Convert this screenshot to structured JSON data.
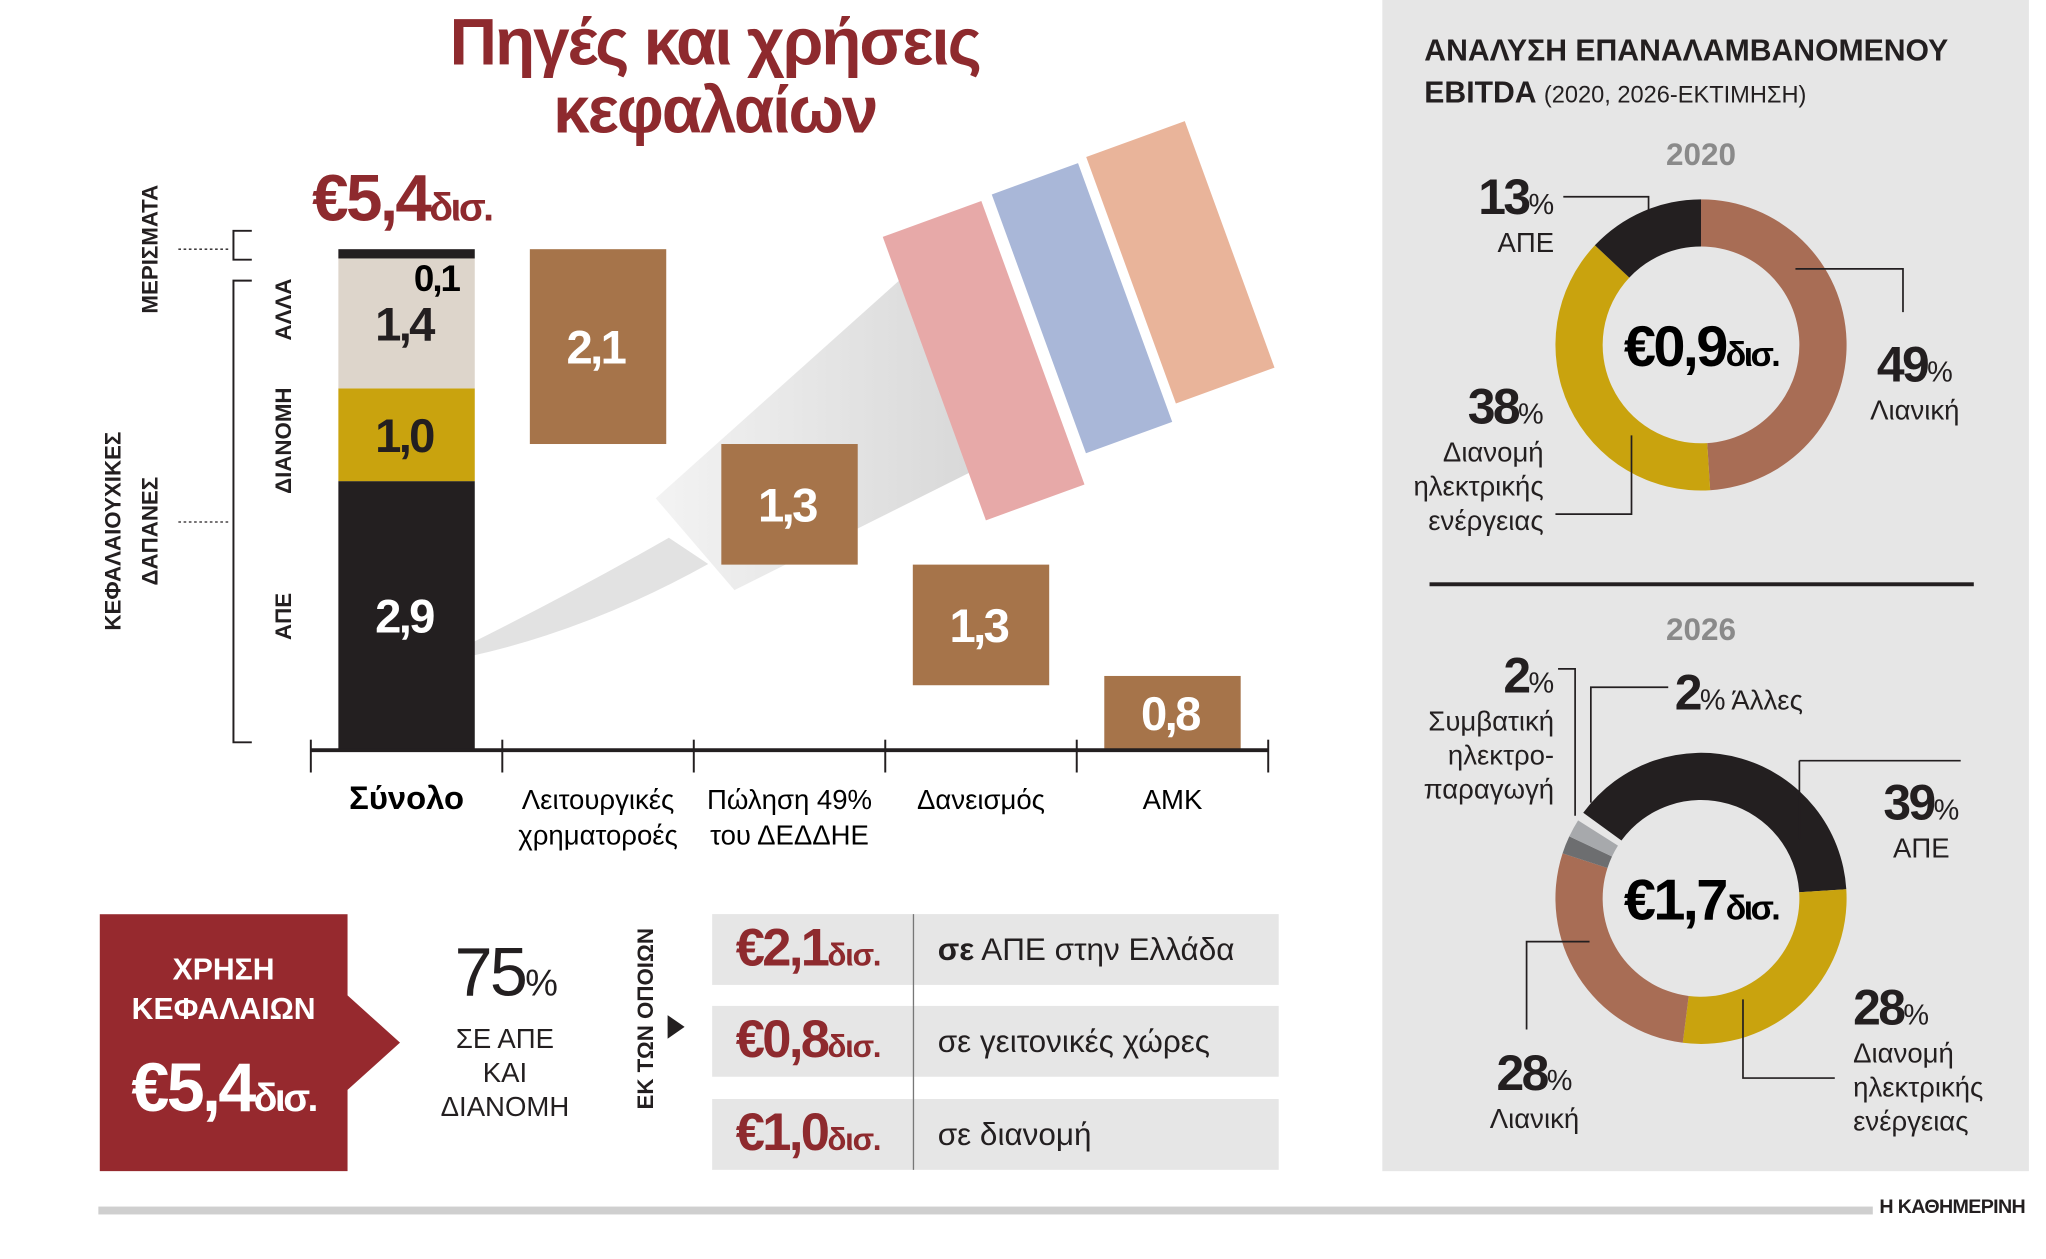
{
  "title_line1": "Πηγές και χρήσεις",
  "title_line2": "κεφαλαίων",
  "total_label": "€5,4",
  "unit": "δισ.",
  "left_labels": {
    "dividends": "ΜΕΡΙΣΜΑΤΑ",
    "capex_line1": "ΚΕΦΑΛΑΙΟΥΧΙΚΕΣ",
    "capex_line2": "ΔΑΠΑΝΕΣ",
    "other": "ΑΛΛΑ",
    "distribution": "ΔΙΑΝΟΜΗ",
    "res": "ΑΠΕ"
  },
  "colors": {
    "title_red": "#8e2a2e",
    "source_brown": "#a6744a",
    "res_black": "#231f20",
    "distribution_gold": "#c9a30e",
    "other_beige": "#ddd5cb",
    "retail_brown": "#a86d55",
    "conventional_gray": "#6d6e70",
    "others_gray": "#a7a9ac",
    "panel_gray": "#e6e6e6"
  },
  "chart_data": [
    {
      "type": "bar",
      "subtype": "waterfall",
      "title": "Πηγές και χρήσεις κεφαλαίων",
      "total": {
        "category": "Σύνολο",
        "value": 5.4,
        "label": "€5,4 δισ.",
        "stack": [
          {
            "name": "ΑΠΕ",
            "value": 2.9,
            "label": "2,9",
            "color": "#231f20"
          },
          {
            "name": "ΔΙΑΝΟΜΗ",
            "value": 1.0,
            "label": "1,0",
            "color": "#c9a30e"
          },
          {
            "name": "ΑΛΛΑ",
            "value": 1.4,
            "label": "1,4",
            "color": "#ddd5cb"
          },
          {
            "name": "ΜΕΡΙΣΜΑΤΑ",
            "value": 0.1,
            "label": "0,1",
            "color": "#231f20"
          }
        ]
      },
      "categories": [
        "Σύνολο",
        "Λειτουργικές χρηματοροές",
        "Πώληση 49% του ΔΕΔΔΗΕ",
        "Δανεισμός",
        "ΑΜΚ"
      ],
      "category_lines": [
        [
          "Σύνολο"
        ],
        [
          "Λειτουργικές",
          "χρηματοροές"
        ],
        [
          "Πώληση 49%",
          "του ΔΕΔΔΗΕ"
        ],
        [
          "Δανεισμός"
        ],
        [
          "ΑΜΚ"
        ]
      ],
      "sources": [
        {
          "category": "Λειτουργικές χρηματοροές",
          "value": 2.1,
          "label": "2,1"
        },
        {
          "category": "Πώληση 49% του ΔΕΔΔΗΕ",
          "value": 1.3,
          "label": "1,3"
        },
        {
          "category": "Δανεισμός",
          "value": 1.3,
          "label": "1,3"
        },
        {
          "category": "ΑΜΚ",
          "value": 0.8,
          "label": "0,8"
        }
      ],
      "ylim": [
        0,
        5.4
      ],
      "grid": false
    },
    {
      "type": "pie",
      "subtype": "donut",
      "title": "2020",
      "center_label": "€0,9",
      "center_unit": "δισ.",
      "slices": [
        {
          "name": "Λιανική",
          "value": 49,
          "label": "49%",
          "color": "#a86d55"
        },
        {
          "name": "Διανομή ηλεκτρικής ενέργειας",
          "value": 38,
          "label": "38%",
          "color": "#c9a30e"
        },
        {
          "name": "ΑΠΕ",
          "value": 13,
          "label": "13%",
          "color": "#231f20"
        }
      ]
    },
    {
      "type": "pie",
      "subtype": "donut",
      "title": "2026",
      "center_label": "€1,7",
      "center_unit": "δισ.",
      "slices": [
        {
          "name": "ΑΠΕ",
          "value": 39,
          "label": "39%",
          "color": "#231f20"
        },
        {
          "name": "Διανομή ηλεκτρικής ενέργειας",
          "value": 28,
          "label": "28%",
          "color": "#c9a30e"
        },
        {
          "name": "Λιανική",
          "value": 28,
          "label": "28%",
          "color": "#a86d55"
        },
        {
          "name": "Συμβατική ηλεκτροπαραγωγή",
          "value": 2,
          "label": "2%",
          "color": "#6d6e70"
        },
        {
          "name": "Άλλες",
          "value": 2,
          "label": "2%",
          "color": "#a7a9ac"
        }
      ]
    }
  ],
  "uses": {
    "box_line1": "ΧΡΗΣΗ",
    "box_line2": "ΚΕΦΑΛΑΙΩΝ",
    "box_amount": "€5,4",
    "box_unit": "δισ.",
    "share_value": "75",
    "share_pct": "%",
    "share_line1": "ΣΕ ΑΠΕ",
    "share_line2": "ΚΑΙ",
    "share_line3": "ΔΙΑΝΟΜΗ",
    "of_which": "ΕΚ ΤΩΝ ΟΠΟΙΩΝ",
    "rows": [
      {
        "amount": "€2,1",
        "unit": "δισ.",
        "bold": "σε",
        "text": "ΑΠΕ στην Ελλάδα"
      },
      {
        "amount": "€0,8",
        "unit": "δισ.",
        "bold": "",
        "text": "σε γειτονικές χώρες"
      },
      {
        "amount": "€1,0",
        "unit": "δισ.",
        "bold": "",
        "text": "σε διανομή"
      }
    ]
  },
  "ebitda": {
    "title_line1": "ΑΝΑΛΥΣΗ ΕΠΑΝΑΛΑΜΒΑΝΟΜΕΝΟΥ",
    "title_bold": "EBITDA",
    "title_rest": "(2020, 2026-ΕΚΤΙΜΗΣΗ)",
    "y2020": {
      "year": "2020",
      "ape_pct": "13",
      "ape": "ΑΠΕ",
      "retail_pct": "49",
      "retail": "Λιανική",
      "dist_pct": "38",
      "dist1": "Διανομή",
      "dist2": "ηλεκτρικής",
      "dist3": "ενέργειας"
    },
    "y2026": {
      "year": "2026",
      "conv_pct": "2",
      "conv1": "Συμβατική",
      "conv2": "ηλεκτρο-",
      "conv3": "παραγωγή",
      "other_pct": "2",
      "other": "Άλλες",
      "ape_pct": "39",
      "ape": "ΑΠΕ",
      "dist_pct": "28",
      "dist1": "Διανομή",
      "dist2": "ηλεκτρικής",
      "dist3": "ενέργειας",
      "retail_pct": "28",
      "retail": "Λιανική"
    },
    "pct_sign": "%"
  },
  "footer": {
    "source": "Η ΚΑΘΗΜΕΡΙΝΗ"
  }
}
